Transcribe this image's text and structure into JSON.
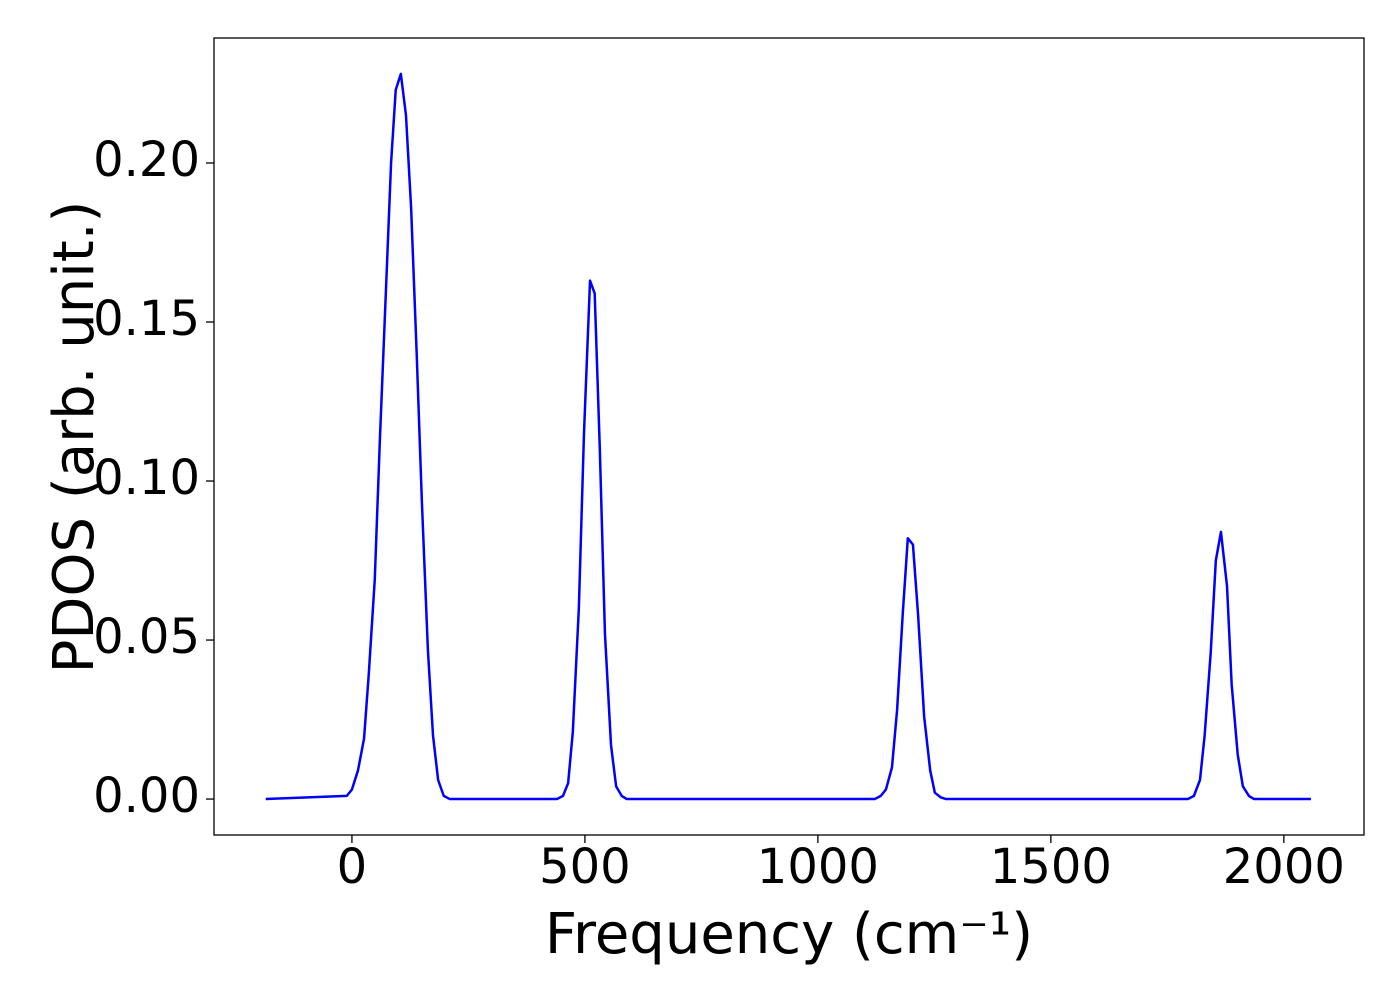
{
  "chart_data": {
    "type": "line",
    "xlabel": "Frequency (cm⁻¹)",
    "ylabel": "PDOS (arb. unit.)",
    "x": [
      -185,
      -11,
      0,
      13,
      26,
      36,
      49,
      60,
      73,
      84,
      94,
      105,
      116,
      127,
      139,
      150,
      163,
      174,
      185,
      197,
      210,
      440,
      453,
      464,
      474,
      487,
      498,
      511,
      521,
      532,
      543,
      556,
      567,
      579,
      590,
      1122,
      1135,
      1146,
      1159,
      1170,
      1182,
      1193,
      1204,
      1215,
      1228,
      1241,
      1251,
      1264,
      1275,
      1794,
      1807,
      1820,
      1830,
      1843,
      1854,
      1865,
      1878,
      1888,
      1901,
      1912,
      1925,
      1936,
      2058
    ],
    "series": [
      {
        "name": "PDOS",
        "color": "#0000ff",
        "values": [
          0,
          0.001,
          0.003,
          0.009,
          0.019,
          0.039,
          0.069,
          0.113,
          0.16,
          0.2,
          0.223,
          0.228,
          0.215,
          0.186,
          0.14,
          0.094,
          0.047,
          0.02,
          0.006,
          0.001,
          0,
          0,
          0.001,
          0.005,
          0.021,
          0.06,
          0.115,
          0.163,
          0.159,
          0.11,
          0.052,
          0.017,
          0.004,
          0.001,
          0,
          0,
          0.001,
          0.003,
          0.01,
          0.028,
          0.058,
          0.082,
          0.08,
          0.058,
          0.026,
          0.009,
          0.002,
          0.0005,
          0,
          0,
          0.001,
          0.006,
          0.02,
          0.046,
          0.075,
          0.084,
          0.067,
          0.036,
          0.014,
          0.004,
          0.001,
          0,
          0
        ]
      }
    ],
    "xlim": [
      -296,
      2172
    ],
    "ylim": [
      -0.0113,
      0.2393
    ],
    "xticks": [
      0,
      500,
      1000,
      1500,
      2000
    ],
    "yticks": [
      {
        "value": 0,
        "label": "0.00"
      },
      0.05,
      {
        "value": 0.1,
        "label": "0.10"
      },
      0.15,
      {
        "value": 0.2,
        "label": "0.20"
      }
    ],
    "grid": false
  }
}
